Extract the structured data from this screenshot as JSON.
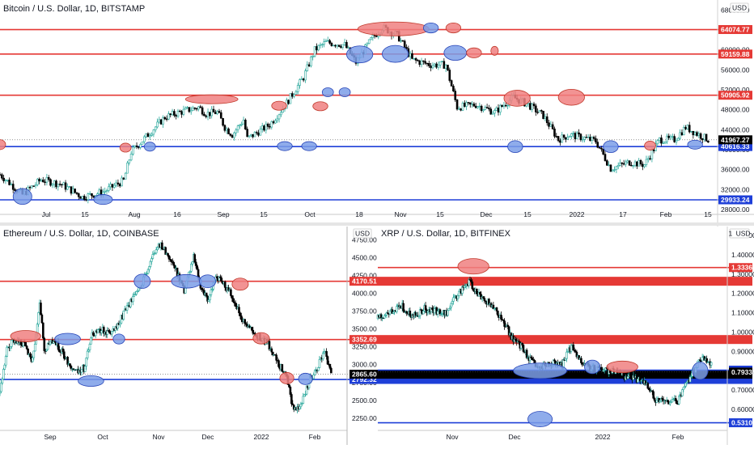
{
  "colors": {
    "up": "#26a69a",
    "down": "#000000",
    "resistance": "#e53935",
    "support": "#1e3fd8",
    "res_marker": "#f08080",
    "sup_marker": "#7b9ee8",
    "last_price_bg": "#000000",
    "background": "#ffffff",
    "divider": "#c8c8c8"
  },
  "chart_data": [
    {
      "type": "candlestick",
      "title": "Bitcoin / U.S. Dollar, 1D, BITSTAMP",
      "currency": "USD",
      "ylim": [
        27500,
        70000
      ],
      "yticks": [
        28000,
        32000,
        36000,
        40000,
        44000,
        48000,
        52000,
        56000,
        60000,
        64000,
        68000
      ],
      "ytick_labels": [
        "28000.00",
        "32000.00",
        "36000.00",
        "40000.00",
        "44000.00",
        "48000.00",
        "52000.00",
        "56000.00",
        "60000.00",
        "64000.00",
        "68000.00"
      ],
      "xtick_labels": [
        "Jul",
        "15",
        "Aug",
        "16",
        "Sep",
        "15",
        "Oct",
        "18",
        "Nov",
        "15",
        "Dec",
        "15",
        "2022",
        "17",
        "Feb",
        "15"
      ],
      "close_path": [
        [
          0,
          35000
        ],
        [
          12,
          31000
        ],
        [
          22,
          34000
        ],
        [
          33,
          33000
        ],
        [
          44,
          30500
        ],
        [
          55,
          31500
        ],
        [
          66,
          33800
        ],
        [
          70,
          39500
        ],
        [
          88,
          46500
        ],
        [
          96,
          47500
        ],
        [
          106,
          48500
        ],
        [
          110,
          47200
        ],
        [
          116,
          47500
        ],
        [
          120,
          44500
        ],
        [
          124,
          43000
        ],
        [
          130,
          46000
        ],
        [
          132,
          42200
        ],
        [
          144,
          45000
        ],
        [
          152,
          48800
        ],
        [
          162,
          54500
        ],
        [
          168,
          60000
        ],
        [
          174,
          61500
        ],
        [
          184,
          61000
        ],
        [
          190,
          57500
        ],
        [
          198,
          62000
        ],
        [
          204,
          64500
        ],
        [
          212,
          63000
        ],
        [
          220,
          58000
        ],
        [
          230,
          57000
        ],
        [
          238,
          57000
        ],
        [
          244,
          48500
        ],
        [
          254,
          49000
        ],
        [
          264,
          47500
        ],
        [
          274,
          50500
        ],
        [
          282,
          49000
        ],
        [
          290,
          46800
        ],
        [
          298,
          42000
        ],
        [
          304,
          43000
        ],
        [
          310,
          42500
        ],
        [
          318,
          41700
        ],
        [
          326,
          36200
        ],
        [
          336,
          37500
        ],
        [
          344,
          37000
        ],
        [
          352,
          42000
        ],
        [
          360,
          42000
        ],
        [
          366,
          44500
        ],
        [
          372,
          43200
        ],
        [
          378,
          42000
        ]
      ],
      "levels": [
        {
          "kind": "resistance",
          "label": "64074.77",
          "value": 64074.77
        },
        {
          "kind": "resistance",
          "label": "59159.88",
          "value": 59159.88
        },
        {
          "kind": "resistance",
          "label": "50905.92",
          "value": 50905.92
        },
        {
          "kind": "support",
          "label": "40616.33",
          "value": 40616.33
        },
        {
          "kind": "support",
          "label": "29933.24",
          "value": 29933.24
        }
      ],
      "last_price": {
        "label": "41967.27",
        "value": 41967.27
      },
      "markers": [
        {
          "kind": "resistance",
          "x": 0,
          "y": 41000,
          "rx": 3,
          "ry": 1000
        },
        {
          "kind": "support",
          "x": 12,
          "y": 30600,
          "rx": 5,
          "ry": 1600
        },
        {
          "kind": "support",
          "x": 55,
          "y": 30000,
          "rx": 5,
          "ry": 1000
        },
        {
          "kind": "resistance",
          "x": 67,
          "y": 40400,
          "rx": 3,
          "ry": 900
        },
        {
          "kind": "support",
          "x": 80,
          "y": 40600,
          "rx": 3,
          "ry": 900
        },
        {
          "kind": "resistance",
          "x": 113,
          "y": 50100,
          "rx": 14,
          "ry": 900
        },
        {
          "kind": "resistance",
          "x": 149,
          "y": 48800,
          "rx": 4,
          "ry": 900
        },
        {
          "kind": "support",
          "x": 152,
          "y": 40700,
          "rx": 4,
          "ry": 900
        },
        {
          "kind": "support",
          "x": 165,
          "y": 40700,
          "rx": 4,
          "ry": 900
        },
        {
          "kind": "resistance",
          "x": 171,
          "y": 48700,
          "rx": 4,
          "ry": 900
        },
        {
          "kind": "support",
          "x": 175,
          "y": 51500,
          "rx": 3,
          "ry": 900
        },
        {
          "kind": "support",
          "x": 184,
          "y": 51500,
          "rx": 3,
          "ry": 900
        },
        {
          "kind": "support",
          "x": 192,
          "y": 59100,
          "rx": 7,
          "ry": 1700
        },
        {
          "kind": "resistance",
          "x": 210,
          "y": 64200,
          "rx": 19,
          "ry": 1400
        },
        {
          "kind": "support",
          "x": 211,
          "y": 59200,
          "rx": 7,
          "ry": 1700
        },
        {
          "kind": "support",
          "x": 230,
          "y": 64400,
          "rx": 4,
          "ry": 1000
        },
        {
          "kind": "resistance",
          "x": 242,
          "y": 64400,
          "rx": 4,
          "ry": 1000
        },
        {
          "kind": "support",
          "x": 243,
          "y": 59400,
          "rx": 6,
          "ry": 1500
        },
        {
          "kind": "resistance",
          "x": 253,
          "y": 59400,
          "rx": 4,
          "ry": 1000
        },
        {
          "kind": "resistance",
          "x": 264,
          "y": 59800,
          "rx": 2,
          "ry": 900
        },
        {
          "kind": "resistance",
          "x": 276,
          "y": 50300,
          "rx": 7,
          "ry": 1600
        },
        {
          "kind": "support",
          "x": 275,
          "y": 40600,
          "rx": 4,
          "ry": 1200
        },
        {
          "kind": "resistance",
          "x": 305,
          "y": 50500,
          "rx": 7,
          "ry": 1600
        },
        {
          "kind": "support",
          "x": 326,
          "y": 40600,
          "rx": 4,
          "ry": 1200
        },
        {
          "kind": "resistance",
          "x": 347,
          "y": 40800,
          "rx": 3,
          "ry": 900
        },
        {
          "kind": "support",
          "x": 371,
          "y": 41000,
          "rx": 4,
          "ry": 900
        }
      ]
    },
    {
      "type": "candlestick",
      "title": "Ethereum / U.S. Dollar, 1D, COINBASE",
      "currency": "USD",
      "ylim": [
        2100,
        4950
      ],
      "yticks": [
        2250,
        2500,
        2750,
        3000,
        3250,
        3500,
        3750,
        4000,
        4250,
        4500,
        4750
      ],
      "ytick_labels": [
        "2250.00",
        "2500.00",
        "2750.00",
        "3000.00",
        "3250.00",
        "3500.00",
        "3750.00",
        "4000.00",
        "4250.00",
        "4500.00",
        "4750.00"
      ],
      "xtick_labels": [
        "Sep",
        "Oct",
        "Nov",
        "Dec",
        "2022",
        "Feb"
      ],
      "close_path": [
        [
          0,
          2600
        ],
        [
          6,
          3200
        ],
        [
          12,
          3350
        ],
        [
          20,
          3300
        ],
        [
          28,
          3050
        ],
        [
          34,
          3900
        ],
        [
          38,
          3200
        ],
        [
          46,
          3350
        ],
        [
          56,
          3100
        ],
        [
          64,
          2900
        ],
        [
          72,
          2950
        ],
        [
          78,
          3400
        ],
        [
          84,
          3500
        ],
        [
          92,
          3450
        ],
        [
          100,
          3500
        ],
        [
          108,
          3800
        ],
        [
          118,
          4000
        ],
        [
          128,
          4400
        ],
        [
          136,
          4700
        ],
        [
          144,
          4550
        ],
        [
          150,
          4350
        ],
        [
          158,
          4050
        ],
        [
          166,
          4500
        ],
        [
          172,
          4100
        ],
        [
          178,
          3900
        ],
        [
          186,
          4250
        ],
        [
          196,
          4050
        ],
        [
          206,
          3700
        ],
        [
          214,
          3500
        ],
        [
          222,
          3400
        ],
        [
          232,
          3250
        ],
        [
          238,
          3050
        ],
        [
          246,
          2800
        ],
        [
          252,
          2350
        ],
        [
          258,
          2450
        ],
        [
          266,
          2800
        ],
        [
          272,
          2950
        ],
        [
          278,
          3200
        ],
        [
          284,
          2900
        ]
      ],
      "levels": [
        {
          "kind": "resistance",
          "label": "4170.51",
          "value": 4170.51
        },
        {
          "kind": "resistance",
          "label": "3352.69",
          "value": 3352.69
        },
        {
          "kind": "support",
          "label": "2792.32",
          "value": 2792.32
        }
      ],
      "last_price": {
        "label": "2865.60",
        "value": 2865.6
      },
      "markers": [
        {
          "kind": "resistance",
          "x": 22,
          "y": 3400,
          "rx": 13,
          "ry": 80
        },
        {
          "kind": "support",
          "x": 58,
          "y": 3360,
          "rx": 11,
          "ry": 80
        },
        {
          "kind": "support",
          "x": 78,
          "y": 2770,
          "rx": 11,
          "ry": 75
        },
        {
          "kind": "support",
          "x": 102,
          "y": 3360,
          "rx": 5,
          "ry": 70
        },
        {
          "kind": "support",
          "x": 122,
          "y": 4170,
          "rx": 7,
          "ry": 100
        },
        {
          "kind": "support",
          "x": 160,
          "y": 4170,
          "rx": 13,
          "ry": 95
        },
        {
          "kind": "support",
          "x": 178,
          "y": 4170,
          "rx": 7,
          "ry": 90
        },
        {
          "kind": "resistance",
          "x": 206,
          "y": 4130,
          "rx": 7,
          "ry": 85
        },
        {
          "kind": "resistance",
          "x": 224,
          "y": 3370,
          "rx": 7,
          "ry": 80
        },
        {
          "kind": "resistance",
          "x": 246,
          "y": 2810,
          "rx": 6,
          "ry": 80
        },
        {
          "kind": "support",
          "x": 262,
          "y": 2800,
          "rx": 6,
          "ry": 80
        }
      ]
    },
    {
      "type": "candlestick",
      "title": "XRP / U.S. Dollar, 1D, BITFINEX",
      "currency": "USD",
      "ylim": [
        0.5,
        1.55
      ],
      "yticks": [
        0.6,
        0.7,
        0.8,
        0.9,
        1.0,
        1.1,
        1.2,
        1.3,
        1.4,
        1.5
      ],
      "ytick_labels": [
        "0.60000",
        "0.70000",
        "0.80000",
        "0.90000",
        "1.00000",
        "1.10000",
        "1.20000",
        "1.30000",
        "1.40000",
        "1.50000"
      ],
      "xtick_labels": [
        "Nov",
        "Dec",
        "2022",
        "Feb"
      ],
      "close_path": [
        [
          0,
          1.07
        ],
        [
          12,
          1.11
        ],
        [
          22,
          1.13
        ],
        [
          32,
          1.08
        ],
        [
          42,
          1.12
        ],
        [
          52,
          1.11
        ],
        [
          62,
          1.1
        ],
        [
          72,
          1.2
        ],
        [
          82,
          1.26
        ],
        [
          90,
          1.2
        ],
        [
          100,
          1.15
        ],
        [
          110,
          1.08
        ],
        [
          120,
          0.98
        ],
        [
          130,
          0.92
        ],
        [
          138,
          0.85
        ],
        [
          146,
          0.81
        ],
        [
          156,
          0.84
        ],
        [
          166,
          0.83
        ],
        [
          174,
          0.93
        ],
        [
          182,
          0.86
        ],
        [
          190,
          0.82
        ],
        [
          200,
          0.8
        ],
        [
          210,
          0.8
        ],
        [
          222,
          0.77
        ],
        [
          232,
          0.76
        ],
        [
          240,
          0.74
        ],
        [
          250,
          0.65
        ],
        [
          260,
          0.64
        ],
        [
          270,
          0.64
        ],
        [
          278,
          0.73
        ],
        [
          286,
          0.82
        ],
        [
          292,
          0.87
        ],
        [
          300,
          0.84
        ]
      ],
      "levels": [
        {
          "kind": "resistance",
          "label": "1.33360",
          "value": 1.3336
        },
        {
          "kind": "support",
          "label": "0.80330",
          "value": 0.8033
        },
        {
          "kind": "support",
          "label": "0.53108",
          "value": 0.53108
        }
      ],
      "last_price": {
        "label": "0.79330",
        "value": 0.7933
      },
      "markers": [
        {
          "kind": "resistance",
          "x": 86,
          "y": 1.34,
          "rx": 14,
          "ry": 0.04
        },
        {
          "kind": "support",
          "x": 146,
          "y": 0.8,
          "rx": 24,
          "ry": 0.04
        },
        {
          "kind": "support",
          "x": 146,
          "y": 0.55,
          "rx": 11,
          "ry": 0.04
        },
        {
          "kind": "support",
          "x": 193,
          "y": 0.82,
          "rx": 7,
          "ry": 0.035
        },
        {
          "kind": "resistance",
          "x": 220,
          "y": 0.82,
          "rx": 14,
          "ry": 0.03
        },
        {
          "kind": "support",
          "x": 290,
          "y": 0.8,
          "rx": 7,
          "ry": 0.045
        }
      ]
    }
  ]
}
